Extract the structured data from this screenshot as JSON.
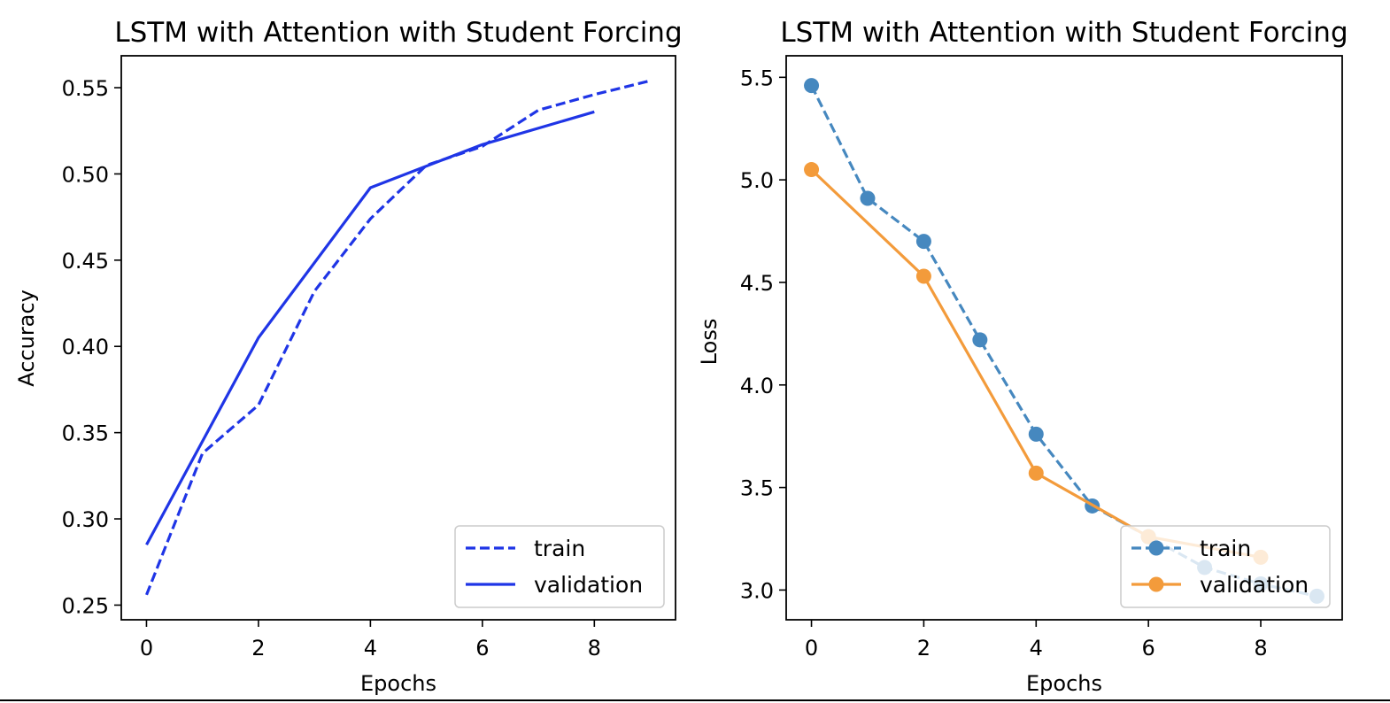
{
  "chart_data": [
    {
      "type": "line",
      "title": "LSTM with Attention with Student Forcing",
      "xlabel": "Epochs",
      "ylabel": "Accuracy",
      "xlim": [
        -0.45,
        9.45
      ],
      "ylim": [
        0.2415,
        0.5685
      ],
      "xticks": [
        0,
        2,
        4,
        6,
        8
      ],
      "yticks": [
        0.25,
        0.3,
        0.35,
        0.4,
        0.45,
        0.5,
        0.55
      ],
      "ytick_labels": [
        "0.25",
        "0.30",
        "0.35",
        "0.40",
        "0.45",
        "0.50",
        "0.55"
      ],
      "legend_position": "lower right",
      "grid": false,
      "series": [
        {
          "name": "train",
          "style": "dashed",
          "marker": false,
          "color": "#1f35e6",
          "x": [
            0,
            1,
            2,
            3,
            4,
            5,
            6,
            7,
            8,
            9
          ],
          "y": [
            0.256,
            0.338,
            0.366,
            0.432,
            0.474,
            0.505,
            0.516,
            0.537,
            0.546,
            0.554
          ]
        },
        {
          "name": "validation",
          "style": "solid",
          "marker": false,
          "color": "#1f35e6",
          "x": [
            0,
            2,
            4,
            6,
            8
          ],
          "y": [
            0.285,
            0.405,
            0.492,
            0.517,
            0.536
          ]
        }
      ]
    },
    {
      "type": "line",
      "title": "LSTM with Attention with Student Forcing",
      "xlabel": "Epochs",
      "ylabel": "Loss",
      "xlim": [
        -0.45,
        9.45
      ],
      "ylim": [
        2.855,
        5.605
      ],
      "xticks": [
        0,
        2,
        4,
        6,
        8
      ],
      "yticks": [
        3.0,
        3.5,
        4.0,
        4.5,
        5.0,
        5.5
      ],
      "ytick_labels": [
        "3.0",
        "3.5",
        "4.0",
        "4.5",
        "5.0",
        "5.5"
      ],
      "legend_position": "lower right",
      "grid": false,
      "series": [
        {
          "name": "train",
          "style": "dashed",
          "marker": true,
          "color": "#4688bf",
          "x": [
            0,
            1,
            2,
            3,
            4,
            5,
            6,
            7,
            8,
            9
          ],
          "y": [
            5.46,
            4.91,
            4.7,
            4.22,
            3.76,
            3.41,
            3.26,
            3.11,
            3.03,
            2.97
          ]
        },
        {
          "name": "validation",
          "style": "solid",
          "marker": true,
          "color": "#f39b3b",
          "x": [
            0,
            2,
            4,
            6,
            8
          ],
          "y": [
            5.05,
            4.53,
            3.57,
            3.26,
            3.16
          ]
        }
      ]
    }
  ]
}
